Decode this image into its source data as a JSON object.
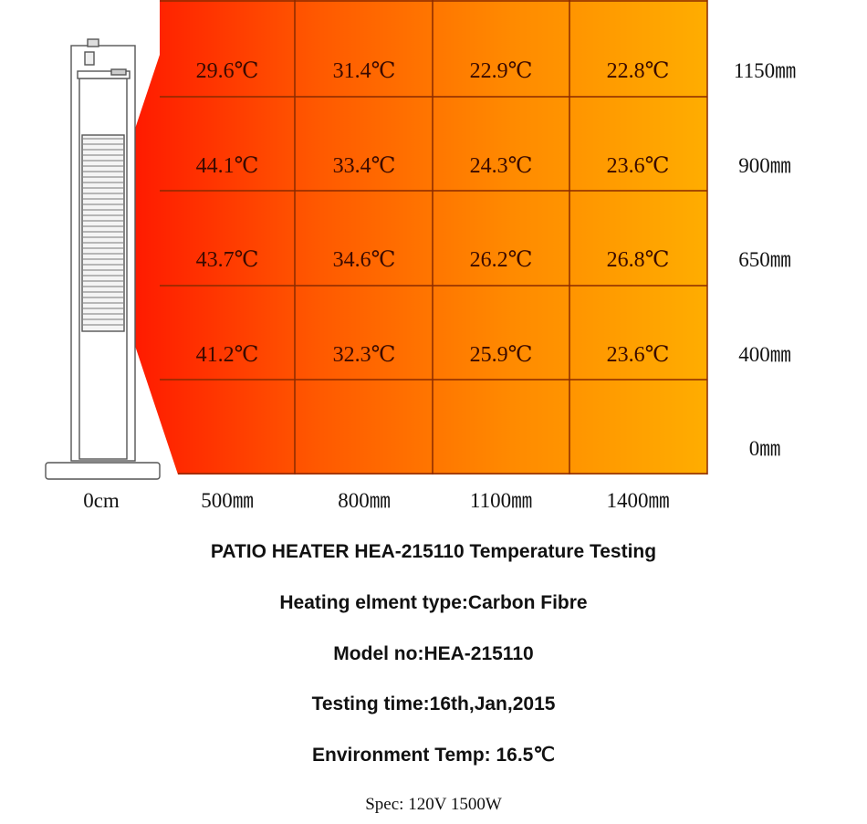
{
  "chart_data": {
    "type": "heatmap",
    "x_labels": [
      "0cm",
      "500㎜",
      "800㎜",
      "1100㎜",
      "1400㎜"
    ],
    "y_labels": [
      "1150㎜",
      "900㎜",
      "650㎜",
      "400㎜",
      "0㎜"
    ],
    "cells": [
      [
        "29.6℃",
        "31.4℃",
        "22.9℃",
        "22.8℃"
      ],
      [
        "44.1℃",
        "33.4℃",
        "24.3℃",
        "23.6℃"
      ],
      [
        "43.7℃",
        "34.6℃",
        "26.2℃",
        "26.8℃"
      ],
      [
        "41.2℃",
        "32.3℃",
        "25.9℃",
        "23.6℃"
      ],
      [
        "",
        "",
        "",
        ""
      ]
    ],
    "gradient": [
      "#ff1a00",
      "#ff5a00",
      "#ff8a00",
      "#ffad00"
    ]
  },
  "captions": {
    "title": "PATIO HEATER HEA-215110 Temperature Testing",
    "element": "Heating elment type:Carbon Fibre",
    "model": "Model no:HEA-215110",
    "time": "Testing time:16th,Jan,2015",
    "env": "Environment Temp: 16.5℃",
    "spec": "Spec:  120V  1500W"
  }
}
